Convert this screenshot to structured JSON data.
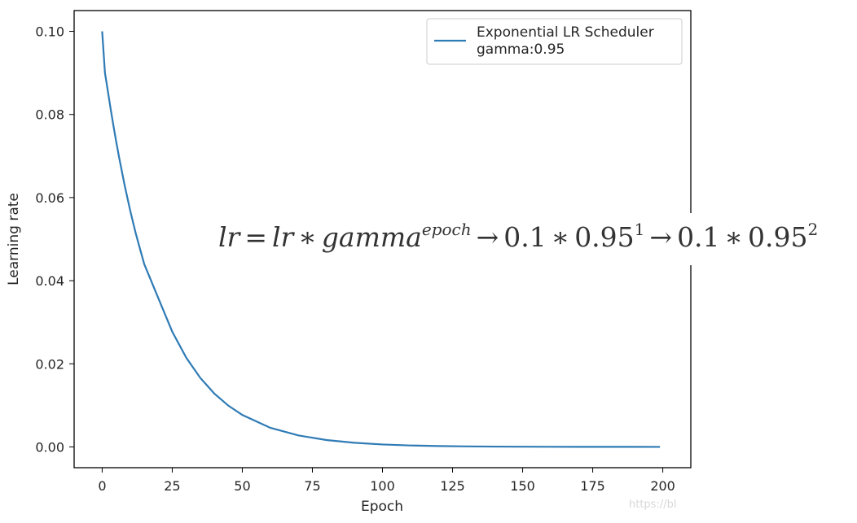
{
  "chart_data": {
    "type": "line",
    "xlabel": "Epoch",
    "ylabel": "Learning rate",
    "xlim": [
      -10,
      210
    ],
    "ylim": [
      -0.005,
      0.105
    ],
    "xticks": [
      0,
      25,
      50,
      75,
      100,
      125,
      150,
      175,
      200
    ],
    "yticks": [
      0.0,
      0.02,
      0.04,
      0.06,
      0.08,
      0.1
    ],
    "xtick_labels": [
      "0",
      "25",
      "50",
      "75",
      "100",
      "125",
      "150",
      "175",
      "200"
    ],
    "ytick_labels": [
      "0.00",
      "0.02",
      "0.04",
      "0.06",
      "0.08",
      "0.10"
    ],
    "grid": false,
    "legend_position": "top-right",
    "series": [
      {
        "name": "Exponential LR Scheduler\ngamma:0.95",
        "color": "#2f7bb5",
        "x": [
          0,
          1,
          2,
          3,
          4,
          5,
          6,
          8,
          10,
          12,
          15,
          20,
          25,
          30,
          35,
          40,
          45,
          50,
          60,
          70,
          80,
          90,
          100,
          110,
          120,
          130,
          140,
          150,
          160,
          170,
          180,
          190,
          199
        ],
        "y": [
          0.1,
          0.09,
          0.08575,
          0.08145,
          0.07738,
          0.07351,
          0.06983,
          0.06302,
          0.05688,
          0.05133,
          0.04401,
          0.03585,
          0.02774,
          0.02146,
          0.01661,
          0.01285,
          0.00994,
          0.00769,
          0.0046,
          0.00276,
          0.00165,
          0.00099,
          0.00059,
          0.00035,
          0.00021,
          0.00013,
          8e-05,
          5e-05,
          3e-05,
          2e-05,
          1e-05,
          1e-05,
          4e-06
        ]
      }
    ],
    "annotation": {
      "lhs": "lr",
      "eq": "=",
      "rhs": "lr",
      "mul": "∗",
      "base": "gamma",
      "exp": "epoch",
      "arrow": "→",
      "step1_coeff": "0.1",
      "step1_base": "0.95",
      "step1_exp": "1",
      "step2_coeff": "0.1",
      "step2_base": "0.95",
      "step2_exp": "2"
    }
  },
  "watermark": "https://bl"
}
